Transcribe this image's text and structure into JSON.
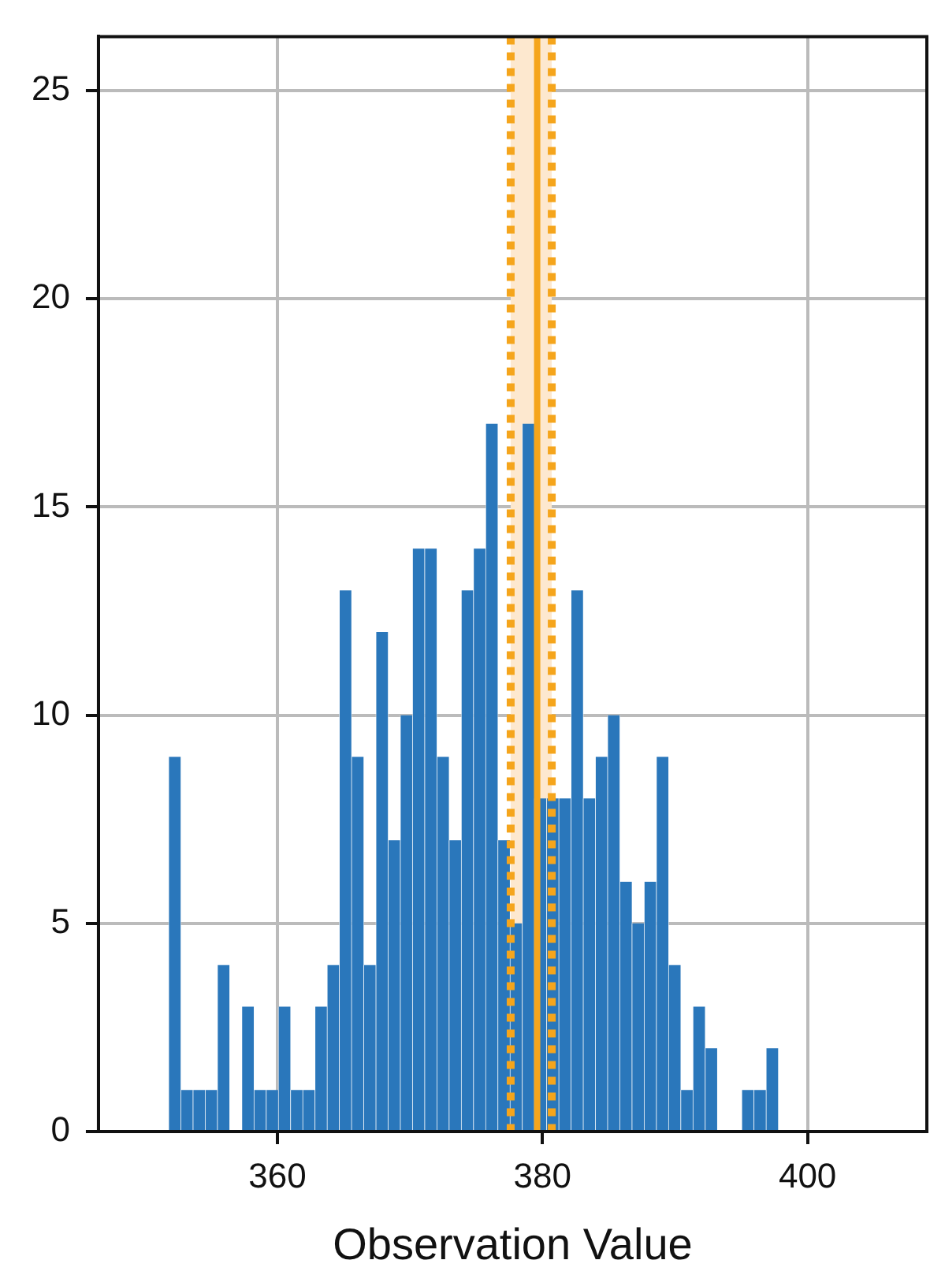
{
  "chart_data": {
    "type": "histogram",
    "xlabel": "Observation Value",
    "bins": [
      351.8,
      352.72,
      353.64,
      354.56,
      355.48,
      356.4,
      357.32,
      358.24,
      359.16,
      360.08,
      361.0,
      361.92,
      362.84,
      363.76,
      364.68,
      365.6,
      366.52,
      367.44,
      368.36,
      369.28,
      370.2,
      371.12,
      372.04,
      372.96,
      373.88,
      374.8,
      375.72,
      376.64,
      377.56,
      378.48,
      379.4,
      380.32,
      381.24,
      382.16,
      383.08,
      384.0,
      384.92,
      385.84,
      386.76,
      387.68,
      388.6,
      389.52,
      390.44,
      391.36,
      392.28,
      393.2,
      394.12,
      395.04,
      395.96,
      396.88,
      397.8
    ],
    "values": [
      9,
      1,
      1,
      1,
      4,
      0,
      3,
      1,
      1,
      3,
      1,
      1,
      3,
      4,
      13,
      9,
      4,
      12,
      7,
      10,
      14,
      14,
      9,
      7,
      13,
      14,
      17,
      7,
      5,
      17,
      8,
      8,
      8,
      13,
      8,
      9,
      10,
      6,
      5,
      6,
      9,
      4,
      1,
      3,
      2,
      0,
      0,
      1,
      1,
      2
    ],
    "color": "#2a77bb",
    "xlim": [
      346.5,
      409
    ],
    "xticks": [
      360,
      380,
      400
    ],
    "ylim": [
      0,
      26.3
    ],
    "yticks": [
      0,
      5,
      10,
      15,
      20,
      25
    ],
    "grid": true,
    "bands": [
      {
        "axis": "x",
        "from": 377.6,
        "to": 380.7,
        "color": "#fde8cf"
      }
    ],
    "ref_lines": [
      {
        "axis": "x",
        "value": 379.6,
        "color": "#f5a51c",
        "line_style": "solid"
      },
      {
        "axis": "x",
        "value": 377.6,
        "color": "#f5a51c",
        "line_style": "dotted"
      },
      {
        "axis": "x",
        "value": 380.7,
        "color": "#f5a51c",
        "line_style": "dotted"
      }
    ]
  }
}
